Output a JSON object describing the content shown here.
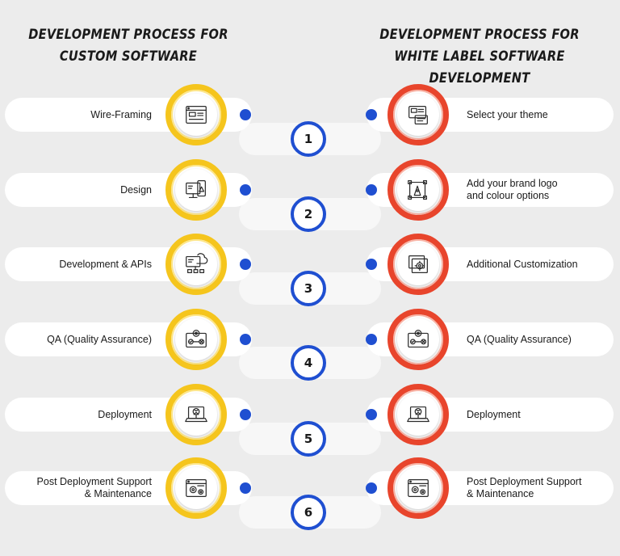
{
  "headings": {
    "left": [
      "DEVELOPMENT PROCESS FOR",
      "CUSTOM SOFTWARE"
    ],
    "right": [
      "DEVELOPMENT PROCESS FOR",
      "WHITE LABEL SOFTWARE DEVELOPMENT"
    ]
  },
  "steps": [
    {
      "number": "1",
      "left": "Wire-Framing",
      "right": "Select your theme",
      "left_icon": "wireframe-browser-icon",
      "right_icon": "theme-layout-icon"
    },
    {
      "number": "2",
      "left": "Design",
      "right": "Add your brand logo\nand colour options",
      "left_icon": "design-tools-icon",
      "right_icon": "brand-logo-pen-icon"
    },
    {
      "number": "3",
      "left": "Development & APIs",
      "right": "Additional Customization",
      "left_icon": "api-development-icon",
      "right_icon": "customization-gear-window-icon"
    },
    {
      "number": "4",
      "left": "QA (Quality Assurance)",
      "right": "QA (Quality Assurance)",
      "left_icon": "quality-assurance-icon",
      "right_icon": "quality-assurance-icon"
    },
    {
      "number": "5",
      "left": "Deployment",
      "right": "Deployment",
      "left_icon": "deployment-laptop-icon",
      "right_icon": "deployment-laptop-icon"
    },
    {
      "number": "6",
      "left": "Post Deployment Support\n& Maintenance",
      "right": "Post Deployment Support\n& Maintenance",
      "left_icon": "support-maintenance-gears-icon",
      "right_icon": "support-maintenance-gears-icon"
    }
  ],
  "colors": {
    "left_ring": "#f5c51d",
    "right_ring": "#e8452c",
    "accent_blue": "#1f4fd1",
    "background": "#ececec"
  }
}
